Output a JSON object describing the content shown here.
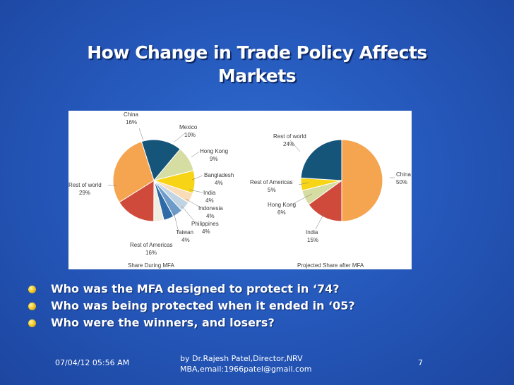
{
  "slide": {
    "title_line1": "How Change in Trade Policy Affects",
    "title_line2": "Markets"
  },
  "chart_data": [
    {
      "type": "pie",
      "title": "Share During MFA",
      "slices": [
        {
          "label": "China",
          "value": 16,
          "value_label": "16%",
          "color": "#16557a"
        },
        {
          "label": "Mexico",
          "value": 10,
          "value_label": "10%",
          "color": "#d6dda2"
        },
        {
          "label": "Hong Kong",
          "value": 9,
          "value_label": "9%",
          "color": "#f7d416"
        },
        {
          "label": "Bangladesh",
          "value": 4,
          "value_label": "4%",
          "color": "#fbdcb8"
        },
        {
          "label": "India",
          "value": 4,
          "value_label": "4%",
          "color": "#c0d4e4"
        },
        {
          "label": "Indonesia",
          "value": 4,
          "value_label": "4%",
          "color": "#6d9cc8"
        },
        {
          "label": "Philippines",
          "value": 4,
          "value_label": "4%",
          "color": "#2e6aa6"
        },
        {
          "label": "Taiwan",
          "value": 4,
          "value_label": "4%",
          "color": "#efeddf"
        },
        {
          "label": "Rest of Americas",
          "value": 16,
          "value_label": "16%",
          "color": "#cf4a3a"
        },
        {
          "label": "Rest of world",
          "value": 29,
          "value_label": "29%",
          "color": "#f5a550"
        }
      ]
    },
    {
      "type": "pie",
      "title": "Projected Share after MFA",
      "slices": [
        {
          "label": "China",
          "value": 50,
          "value_label": "50%",
          "color": "#f5a550"
        },
        {
          "label": "India",
          "value": 15,
          "value_label": "15%",
          "color": "#cf4a3a"
        },
        {
          "label": "Hong Kong",
          "value": 6,
          "value_label": "6%",
          "color": "#d6dda2"
        },
        {
          "label": "Rest of Americas",
          "value": 5,
          "value_label": "5%",
          "color": "#f7d416"
        },
        {
          "label": "Rest of world",
          "value": 24,
          "value_label": "24%",
          "color": "#16557a"
        }
      ]
    }
  ],
  "bullets": [
    "Who was the MFA designed to protect in ‘74?",
    "Who was being protected when it ended in ‘05?",
    "Who were the winners, and losers?"
  ],
  "footer": {
    "date": "07/04/12 05:56 AM",
    "credit_line1": "by Dr.Rajesh Patel,Director,NRV",
    "credit_line2": "MBA,email:1966patel@gmail.com",
    "page": "7"
  }
}
